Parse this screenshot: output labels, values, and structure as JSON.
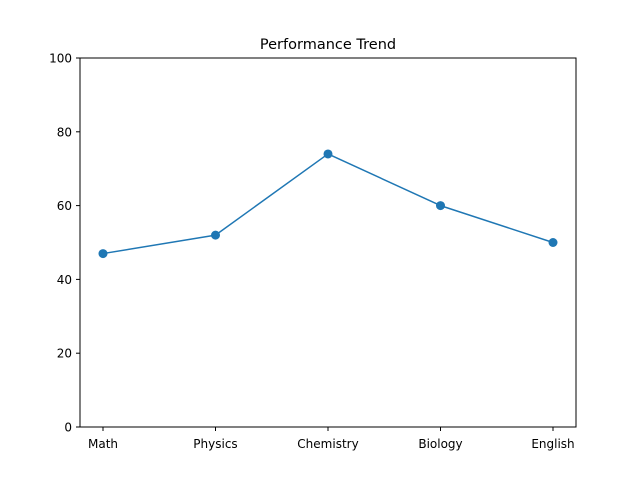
{
  "chart_data": {
    "type": "line",
    "title": "Performance Trend",
    "xlabel": "",
    "ylabel": "",
    "categories": [
      "Math",
      "Physics",
      "Chemistry",
      "Biology",
      "English"
    ],
    "series": [
      {
        "values": [
          47,
          52,
          74,
          60,
          50
        ],
        "color": "#1f77b4"
      }
    ],
    "ylim": [
      0,
      100
    ],
    "yticks": [
      0,
      20,
      40,
      60,
      80,
      100
    ],
    "grid": false,
    "markers": true
  }
}
